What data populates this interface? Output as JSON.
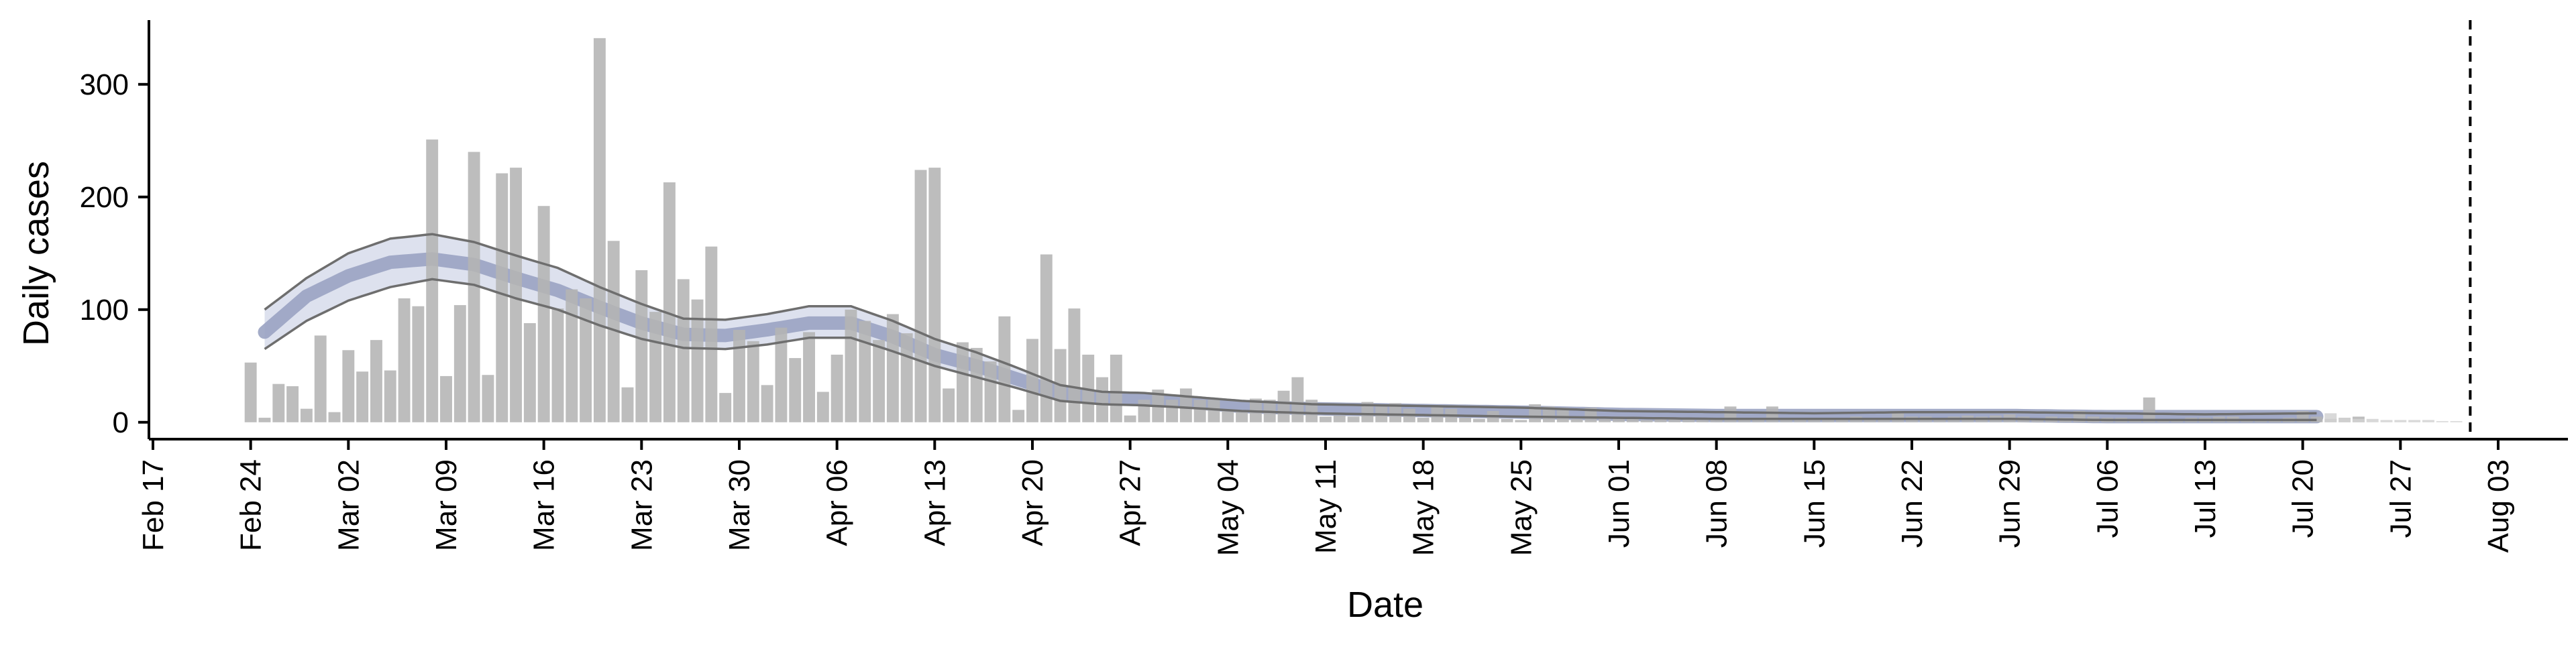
{
  "chart_data": {
    "type": "bar",
    "title": "",
    "xlabel": "Date",
    "ylabel": "Daily cases",
    "grid": false,
    "legend": "none",
    "x_start": "Feb 17",
    "x_end": "Aug 08",
    "ylim": [
      -15,
      357
    ],
    "yticks": [
      0,
      100,
      200,
      300
    ],
    "ytick_labels": [
      "0",
      "100",
      "200",
      "300"
    ],
    "xticks": [
      "Feb 17",
      "Feb 24",
      "Mar 02",
      "Mar 09",
      "Mar 16",
      "Mar 23",
      "Mar 30",
      "Apr 06",
      "Apr 13",
      "Apr 20",
      "Apr 27",
      "May 04",
      "May 11",
      "May 18",
      "May 25",
      "Jun 01",
      "Jun 08",
      "Jun 15",
      "Jun 22",
      "Jun 29",
      "Jul 06",
      "Jul 13",
      "Jul 20",
      "Jul 27",
      "Aug 03"
    ],
    "vline_date": "Aug 01",
    "colors": {
      "bars": "#b4b4b4",
      "projection": "#d2d2d2",
      "median": "#9aa3c2",
      "interval": "#dde1ee",
      "bounds": "#6e6e6e",
      "axis": "#000000"
    },
    "observed": {
      "start_date": "Feb 24",
      "values": [
        53,
        4,
        34,
        32,
        12,
        77,
        9,
        64,
        45,
        73,
        46,
        110,
        103,
        251,
        41,
        104,
        240,
        42,
        221,
        226,
        88,
        192,
        101,
        118,
        110,
        341,
        161,
        31,
        135,
        98,
        213,
        127,
        109,
        156,
        26,
        82,
        72,
        33,
        84,
        57,
        80,
        27,
        60,
        100,
        90,
        73,
        96,
        79,
        224,
        226,
        30,
        71,
        66,
        54,
        94,
        11,
        74,
        149,
        65,
        101,
        60,
        40,
        60,
        6,
        20,
        29,
        20,
        30,
        20,
        20,
        10,
        10,
        21,
        20,
        28,
        40,
        20,
        5,
        6,
        5,
        18,
        14,
        17,
        12,
        4,
        15,
        12,
        4,
        3,
        10,
        3,
        2,
        16,
        14,
        13,
        3,
        13,
        3,
        5,
        3,
        2,
        4,
        3,
        3,
        2,
        3,
        14,
        4,
        4,
        14,
        4,
        3,
        4,
        3,
        3,
        5,
        4,
        4,
        10,
        5,
        5,
        4,
        5,
        6,
        5,
        6,
        7,
        5,
        3,
        5,
        4,
        10,
        5,
        4,
        4,
        3,
        22,
        3,
        3,
        4,
        4,
        5,
        5,
        3,
        3,
        2,
        4,
        10,
        5,
        3,
        4,
        5
      ]
    },
    "projected": {
      "start_date": "Jul 22",
      "values": [
        8,
        4,
        3,
        3,
        2,
        2,
        2,
        2,
        1,
        1
      ]
    },
    "model_fit": {
      "start_date": "Feb 25",
      "end_date": "Jul 21",
      "knots": [
        [
          "Feb 25",
          80,
          100,
          65
        ],
        [
          "Feb 28",
          112,
          128,
          90
        ],
        [
          "Mar 02",
          130,
          150,
          108
        ],
        [
          "Mar 05",
          142,
          163,
          120
        ],
        [
          "Mar 08",
          145,
          167,
          127
        ],
        [
          "Mar 11",
          140,
          160,
          122
        ],
        [
          "Mar 14",
          128,
          148,
          110
        ],
        [
          "Mar 17",
          117,
          137,
          100
        ],
        [
          "Mar 20",
          102,
          120,
          86
        ],
        [
          "Mar 23",
          88,
          105,
          74
        ],
        [
          "Mar 26",
          78,
          92,
          66
        ],
        [
          "Mar 29",
          77,
          91,
          65
        ],
        [
          "Apr 01",
          82,
          96,
          69
        ],
        [
          "Apr 04",
          88,
          103,
          75
        ],
        [
          "Apr 07",
          88,
          103,
          75
        ],
        [
          "Apr 10",
          76,
          90,
          63
        ],
        [
          "Apr 13",
          60,
          74,
          50
        ],
        [
          "Apr 16",
          50,
          62,
          40
        ],
        [
          "Apr 19",
          38,
          48,
          30
        ],
        [
          "Apr 22",
          26,
          33,
          19
        ],
        [
          "Apr 25",
          21,
          27,
          16
        ],
        [
          "Apr 28",
          20,
          26,
          15
        ],
        [
          "May 01",
          18,
          23,
          13
        ],
        [
          "May 05",
          14,
          19,
          10
        ],
        [
          "May 10",
          12,
          16,
          8
        ],
        [
          "May 15",
          11,
          15,
          7
        ],
        [
          "May 20",
          10,
          14,
          6
        ],
        [
          "May 25",
          9,
          13,
          5
        ],
        [
          "Jun 01",
          7,
          10,
          4
        ],
        [
          "Jun 08",
          6,
          9,
          3
        ],
        [
          "Jun 15",
          6,
          8,
          3
        ],
        [
          "Jun 22",
          6,
          9,
          3
        ],
        [
          "Jun 29",
          6,
          9,
          3
        ],
        [
          "Jul 06",
          5,
          8,
          2
        ],
        [
          "Jul 13",
          5,
          7,
          2
        ],
        [
          "Jul 21",
          5,
          8,
          2
        ]
      ]
    }
  }
}
